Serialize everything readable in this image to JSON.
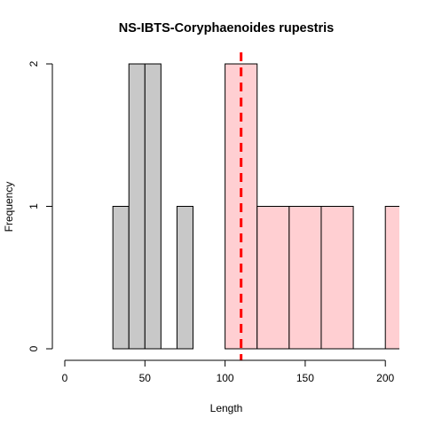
{
  "chart_data": {
    "type": "bar",
    "title": "NS-IBTS-Coryphaenoides rupestris",
    "xlabel": "Length",
    "ylabel": "Frequency",
    "xlim": [
      0,
      210
    ],
    "ylim": [
      0,
      2
    ],
    "x_ticks": [
      "0",
      "50",
      "100",
      "150",
      "200"
    ],
    "y_ticks": [
      "0",
      "1",
      "2"
    ],
    "series": [
      {
        "color": "#c8c8c8",
        "bins": [
          {
            "from": 30,
            "to": 40,
            "count": 1
          },
          {
            "from": 40,
            "to": 50,
            "count": 2
          },
          {
            "from": 50,
            "to": 60,
            "count": 2
          },
          {
            "from": 60,
            "to": 70,
            "count": 0
          },
          {
            "from": 70,
            "to": 80,
            "count": 1
          }
        ]
      },
      {
        "color": "#ffcfd2",
        "bins": [
          {
            "from": 100,
            "to": 120,
            "count": 2
          },
          {
            "from": 120,
            "to": 140,
            "count": 1
          },
          {
            "from": 140,
            "to": 160,
            "count": 1
          },
          {
            "from": 160,
            "to": 180,
            "count": 1
          },
          {
            "from": 180,
            "to": 200,
            "count": 0
          },
          {
            "from": 200,
            "to": 220,
            "count": 1
          }
        ]
      }
    ],
    "reference_line": {
      "x": 110,
      "color": "#ff0000",
      "style": "dashed"
    }
  }
}
